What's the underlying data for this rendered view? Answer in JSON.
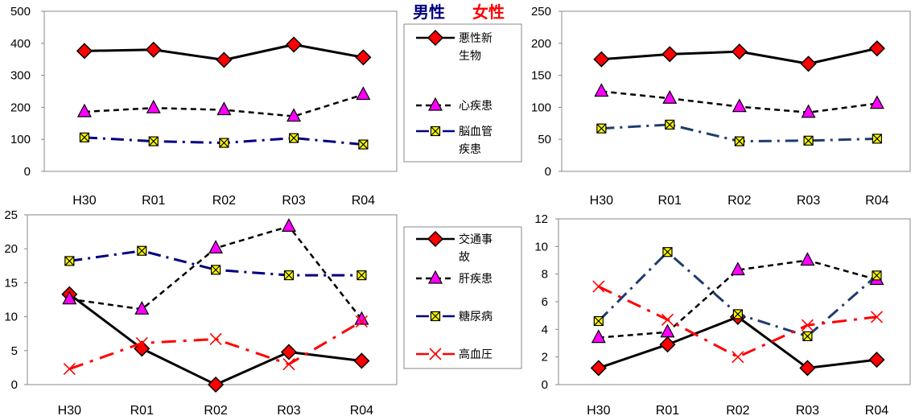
{
  "headers": {
    "male": "男性",
    "female": "女性"
  },
  "colors": {
    "male_header": "#000080",
    "female_header": "#ff0000"
  },
  "legend_top": [
    "悪性新生物",
    "心疾患",
    "脳血管疾患"
  ],
  "legend_bottom": [
    "交通事故",
    "肝疾患",
    "糖尿病",
    "高血圧"
  ],
  "chart_data": [
    {
      "type": "line",
      "panel": "male-top",
      "title": "男性",
      "x": [
        "H30",
        "R01",
        "R02",
        "R03",
        "R04"
      ],
      "ylim": [
        0,
        500
      ],
      "yticks": [
        0,
        100,
        200,
        300,
        400,
        500
      ],
      "legend": "right",
      "series": [
        {
          "name": "悪性新生物",
          "values": [
            376,
            380,
            348,
            396,
            356
          ],
          "style": "solid",
          "marker": "diamond",
          "color": "#000000",
          "marker_color": "#ff0000"
        },
        {
          "name": "心疾患",
          "values": [
            186,
            198,
            192,
            172,
            240
          ],
          "style": "dash",
          "marker": "triangle",
          "color": "#000000",
          "marker_color": "#ff00ff"
        },
        {
          "name": "脳血管疾患",
          "values": [
            106,
            94,
            89,
            104,
            84
          ],
          "style": "dashdot",
          "marker": "square-x",
          "color": "#000080",
          "marker_color": "#ffff00"
        }
      ]
    },
    {
      "type": "line",
      "panel": "female-top",
      "title": "女性",
      "x": [
        "H30",
        "R01",
        "R02",
        "R03",
        "R04"
      ],
      "ylim": [
        0,
        250
      ],
      "yticks": [
        0,
        50,
        100,
        150,
        200,
        250
      ],
      "series": [
        {
          "name": "悪性新生物",
          "values": [
            175,
            183,
            187,
            168,
            192
          ],
          "style": "solid",
          "marker": "diamond",
          "color": "#000000",
          "marker_color": "#ff0000"
        },
        {
          "name": "心疾患",
          "values": [
            125,
            114,
            101,
            92,
            106
          ],
          "style": "dash",
          "marker": "triangle",
          "color": "#000000",
          "marker_color": "#ff00ff"
        },
        {
          "name": "脳血管疾患",
          "values": [
            67,
            73,
            47,
            48,
            51
          ],
          "style": "dashdot",
          "marker": "square-x",
          "color": "#1f3b6e",
          "marker_color": "#ffff00"
        }
      ]
    },
    {
      "type": "line",
      "panel": "male-bottom",
      "x": [
        "H30",
        "R01",
        "R02",
        "R03",
        "R04"
      ],
      "ylim": [
        0,
        25
      ],
      "yticks": [
        0,
        5,
        10,
        15,
        20,
        25
      ],
      "legend": "right",
      "series": [
        {
          "name": "交通事故",
          "values": [
            13.3,
            5.3,
            0,
            4.8,
            3.5
          ],
          "style": "solid",
          "marker": "diamond",
          "color": "#000000",
          "marker_color": "#ff0000"
        },
        {
          "name": "肝疾患",
          "values": [
            12.6,
            11.1,
            20.1,
            23.3,
            9.6
          ],
          "style": "dash",
          "marker": "triangle",
          "color": "#000000",
          "marker_color": "#ff00ff"
        },
        {
          "name": "糖尿病",
          "values": [
            18.2,
            19.7,
            16.9,
            16.1,
            16.1
          ],
          "style": "dashdot",
          "marker": "square-x",
          "color": "#000080",
          "marker_color": "#ffff00"
        },
        {
          "name": "高血圧",
          "values": [
            2.3,
            6.1,
            6.7,
            3.0,
            9.3
          ],
          "style": "dashdot",
          "marker": "x",
          "color": "#ff0000",
          "marker_color": "#ff0000"
        }
      ]
    },
    {
      "type": "line",
      "panel": "female-bottom",
      "x": [
        "H30",
        "R01",
        "R02",
        "R03",
        "R04"
      ],
      "ylim": [
        0,
        12
      ],
      "yticks": [
        0,
        2,
        4,
        6,
        8,
        10,
        12
      ],
      "series": [
        {
          "name": "交通事故",
          "values": [
            1.2,
            2.9,
            4.9,
            1.2,
            1.8
          ],
          "style": "solid",
          "marker": "diamond",
          "color": "#000000",
          "marker_color": "#ff0000"
        },
        {
          "name": "肝疾患",
          "values": [
            3.4,
            3.8,
            8.3,
            9.0,
            7.6
          ],
          "style": "dash",
          "marker": "triangle",
          "color": "#000000",
          "marker_color": "#ff00ff"
        },
        {
          "name": "糖尿病",
          "values": [
            4.6,
            9.6,
            5.1,
            3.5,
            7.9
          ],
          "style": "dashdot",
          "marker": "square-x",
          "color": "#1f3b6e",
          "marker_color": "#ffff00"
        },
        {
          "name": "高血圧",
          "values": [
            7.1,
            4.7,
            2.0,
            4.3,
            4.9
          ],
          "style": "dashdot",
          "marker": "x",
          "color": "#ff0000",
          "marker_color": "#ff0000"
        }
      ]
    }
  ]
}
